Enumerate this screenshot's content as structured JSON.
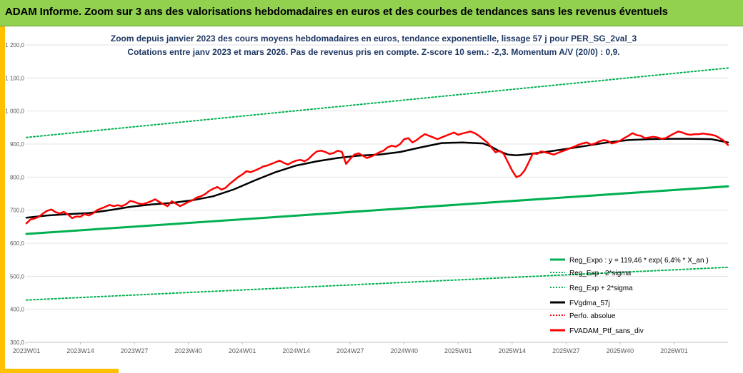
{
  "header": {
    "title": "ADAM Informe. Zoom sur 3 ans des valorisations hebdomadaires en euros et des courbes de tendances sans les revenus éventuels"
  },
  "colors": {
    "header_bg": "#92d050",
    "accent_bar": "#ffc000",
    "reg_green": "#00b050",
    "fvgdma_black": "#000000",
    "red_series": "#ff0000"
  },
  "chart_data": {
    "type": "line",
    "title_lines": [
      "Zoom depuis janvier 2023 des cours moyens hebdomadaires  en euros, tendance exponentielle, lissage 57 j pour PER_SG_2val_3",
      "Cotations  entre janv 2023 et mars 2026. Pas de revenus pris en compte. Z-score 10 sem.: -2,3. Momentum A/V (20/0) : 0,9."
    ],
    "ylim": [
      300,
      1200
    ],
    "yticks": [
      "300,0",
      "400,0",
      "500,0",
      "600,0",
      "700,0",
      "800,0",
      "900,0",
      "1 000,0",
      "1 100,0",
      "1 200,0"
    ],
    "ytick_values": [
      300,
      400,
      500,
      600,
      700,
      800,
      900,
      1000,
      1100,
      1200
    ],
    "xlim": [
      0,
      169
    ],
    "xticks": [
      "2023W01",
      "2023W14",
      "2023W27",
      "2023W40",
      "2024W01",
      "2024W14",
      "2024W27",
      "2024W40",
      "2025W01",
      "2025W14",
      "2025W27",
      "2025W40",
      "2026W01"
    ],
    "xtick_positions": [
      0,
      13,
      26,
      39,
      52,
      65,
      78,
      91,
      104,
      117,
      130,
      143,
      156
    ],
    "legend": [
      {
        "label": "Reg_Expo : y = 119,46 * exp( 6,4% *  X_an )",
        "style": "solid",
        "color": "#00b050"
      },
      {
        "label": "Reg_Exp - 2*sigma",
        "style": "dotted",
        "color": "#00b050"
      },
      {
        "label": "Reg_Exp + 2*sigma",
        "style": "dotted",
        "color": "#00b050"
      },
      {
        "label": "FVgdma_57j",
        "style": "solid",
        "color": "#000000"
      },
      {
        "label": "Perfo. absolue",
        "style": "dotted",
        "color": "#ff0000"
      },
      {
        "label": "FVADAM_Ptf_sans_div",
        "style": "solid",
        "color": "#ff0000"
      }
    ],
    "series": [
      {
        "name": "Reg_Expo",
        "x": [
          0,
          169
        ],
        "values": [
          628,
          772
        ]
      },
      {
        "name": "Reg_Exp - 2*sigma",
        "x": [
          0,
          169
        ],
        "values": [
          428,
          527
        ]
      },
      {
        "name": "Reg_Exp + 2*sigma",
        "x": [
          0,
          169
        ],
        "values": [
          920,
          1130
        ]
      },
      {
        "name": "FVgdma_57j",
        "x": [
          0,
          5,
          10,
          15,
          20,
          25,
          30,
          35,
          40,
          45,
          50,
          55,
          60,
          65,
          70,
          75,
          80,
          85,
          90,
          95,
          100,
          105,
          110,
          112,
          114,
          116,
          118,
          120,
          125,
          130,
          135,
          140,
          145,
          150,
          155,
          160,
          165,
          169
        ],
        "values": [
          677,
          684,
          688,
          691,
          700,
          710,
          717,
          722,
          730,
          742,
          763,
          790,
          815,
          835,
          848,
          858,
          865,
          868,
          876,
          890,
          903,
          905,
          902,
          892,
          878,
          868,
          866,
          868,
          876,
          885,
          895,
          905,
          912,
          915,
          916,
          916,
          915,
          905
        ]
      },
      {
        "name": "FVADAM_Ptf_sans_div",
        "x": [
          0,
          1,
          2,
          3,
          4,
          5,
          6,
          7,
          8,
          9,
          10,
          11,
          12,
          13,
          14,
          15,
          16,
          17,
          18,
          19,
          20,
          21,
          22,
          23,
          24,
          25,
          26,
          27,
          28,
          29,
          30,
          31,
          32,
          33,
          34,
          35,
          36,
          37,
          38,
          39,
          40,
          41,
          42,
          43,
          44,
          45,
          46,
          47,
          48,
          49,
          50,
          51,
          52,
          53,
          54,
          55,
          56,
          57,
          58,
          59,
          60,
          61,
          62,
          63,
          64,
          65,
          66,
          67,
          68,
          69,
          70,
          71,
          72,
          73,
          74,
          75,
          76,
          77,
          78,
          79,
          80,
          81,
          82,
          83,
          84,
          85,
          86,
          87,
          88,
          89,
          90,
          91,
          92,
          93,
          94,
          95,
          96,
          97,
          98,
          99,
          100,
          101,
          102,
          103,
          104,
          105,
          106,
          107,
          108,
          109,
          110,
          111,
          112,
          113,
          114,
          115,
          116,
          117,
          118,
          119,
          120,
          121,
          122,
          123,
          124,
          125,
          126,
          127,
          128,
          129,
          130,
          131,
          132,
          133,
          134,
          135,
          136,
          137,
          138,
          139,
          140,
          141,
          142,
          143,
          144,
          145,
          146,
          147,
          148,
          149,
          150,
          151,
          152,
          153,
          154,
          155,
          156,
          157,
          158,
          159,
          160,
          161,
          162,
          163,
          164,
          165,
          166,
          167,
          168,
          169
        ],
        "values": [
          660,
          672,
          675,
          680,
          690,
          698,
          702,
          694,
          690,
          695,
          687,
          676,
          681,
          680,
          688,
          684,
          690,
          700,
          705,
          710,
          716,
          712,
          715,
          712,
          718,
          728,
          725,
          720,
          718,
          722,
          727,
          733,
          725,
          718,
          712,
          727,
          720,
          712,
          718,
          725,
          730,
          738,
          742,
          748,
          758,
          765,
          770,
          762,
          768,
          780,
          790,
          800,
          808,
          818,
          815,
          820,
          825,
          832,
          835,
          840,
          845,
          850,
          843,
          838,
          845,
          850,
          852,
          848,
          855,
          868,
          878,
          880,
          876,
          870,
          873,
          880,
          876,
          840,
          855,
          868,
          872,
          865,
          858,
          862,
          868,
          875,
          880,
          890,
          895,
          892,
          900,
          915,
          918,
          905,
          912,
          922,
          930,
          925,
          920,
          915,
          920,
          925,
          930,
          935,
          928,
          932,
          935,
          938,
          933,
          925,
          915,
          905,
          890,
          875,
          880,
          870,
          845,
          820,
          800,
          805,
          820,
          845,
          872,
          870,
          878,
          875,
          872,
          868,
          873,
          878,
          882,
          888,
          892,
          898,
          902,
          905,
          898,
          902,
          908,
          912,
          910,
          902,
          905,
          910,
          918,
          925,
          933,
          927,
          925,
          918,
          920,
          922,
          920,
          916,
          918,
          925,
          932,
          938,
          935,
          930,
          928,
          930,
          930,
          932,
          930,
          928,
          925,
          918,
          910,
          897
        ]
      }
    ]
  }
}
